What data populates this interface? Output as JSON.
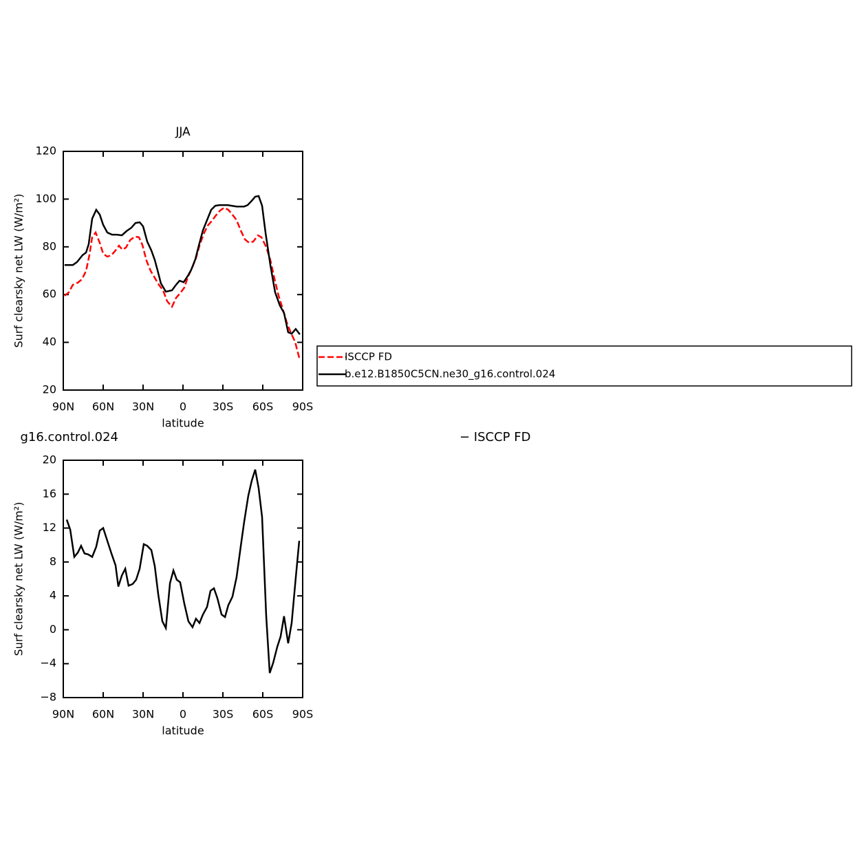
{
  "chart_data": [
    {
      "type": "line",
      "title": "JJA",
      "xlabel": "latitude",
      "ylabel": "Surf clearsky net LW (W/m²)",
      "xlim": [
        90,
        -90
      ],
      "ylim": [
        20,
        120
      ],
      "xticks": [
        {
          "value": 90,
          "label": "90N"
        },
        {
          "value": 60,
          "label": "60N"
        },
        {
          "value": 30,
          "label": "30N"
        },
        0,
        {
          "value": -30,
          "label": "30S"
        },
        {
          "value": -60,
          "label": "60S"
        },
        {
          "value": -90,
          "label": "90S"
        }
      ],
      "yticks": [
        20,
        40,
        60,
        80,
        100,
        120
      ],
      "legend": "right",
      "series": [
        {
          "name": "ISCCP FD",
          "color": "#ff0000",
          "dash": true,
          "x": [
            89.0,
            85.9,
            82.8,
            79.1,
            76.0,
            72.9,
            70.3,
            68.3,
            65.7,
            62.6,
            60.0,
            56.9,
            53.8,
            50.7,
            48.1,
            45.5,
            42.9,
            39.8,
            36.2,
            33.1,
            30.5,
            27.4,
            24.3,
            21.2,
            18.1,
            15.0,
            11.9,
            8.3,
            5.2,
            2.1,
            -1.0,
            -3.6,
            -6.7,
            -9.8,
            -12.4,
            -15.5,
            -18.6,
            -21.7,
            -24.8,
            -27.9,
            -31.0,
            -34.1,
            -37.2,
            -40.3,
            -43.4,
            -46.6,
            -49.7,
            -52.8,
            -56.4,
            -59.0,
            -62.6,
            -65.7,
            -68.8,
            -71.9,
            -75.0,
            -78.1,
            -81.2,
            -84.3,
            -87.4
          ],
          "values": [
            59.5,
            60.9,
            64.1,
            65.0,
            66.4,
            69.9,
            76.8,
            84.0,
            86.0,
            81.7,
            77.1,
            75.9,
            76.5,
            78.5,
            80.5,
            78.8,
            79.7,
            82.8,
            84.3,
            84.0,
            80.8,
            74.2,
            69.9,
            67.0,
            64.1,
            61.8,
            57.2,
            54.9,
            58.6,
            60.6,
            62.9,
            67.3,
            71.0,
            75.3,
            80.5,
            85.4,
            88.9,
            90.9,
            93.2,
            95.2,
            96.4,
            95.5,
            93.5,
            91.2,
            86.9,
            83.1,
            81.7,
            82.2,
            84.8,
            84.0,
            79.9,
            74.5,
            66.7,
            59.5,
            54.0,
            48.2,
            43.9,
            40.2,
            33.5
          ]
        },
        {
          "name": "b.e12.B1850C5CN.ne30_g16.control.024",
          "color": "#000000",
          "dash": false,
          "x": [
            89.0,
            82.8,
            79.7,
            75.5,
            72.9,
            70.9,
            68.3,
            65.2,
            62.6,
            60.0,
            56.9,
            53.3,
            49.7,
            46.0,
            42.4,
            38.8,
            35.7,
            32.6,
            30.0,
            26.9,
            23.8,
            21.2,
            19.1,
            16.6,
            12.9,
            8.3,
            5.2,
            2.6,
            -0.5,
            -3.6,
            -6.2,
            -9.3,
            -11.9,
            -15.0,
            -18.1,
            -21.2,
            -24.3,
            -27.4,
            -33.6,
            -36.7,
            -40.3,
            -46.0,
            -48.6,
            -51.7,
            -54.3,
            -56.9,
            -59.5,
            -62.1,
            -65.7,
            -69.3,
            -72.9,
            -76.0,
            -79.1,
            -81.7,
            -84.8,
            -87.9
          ],
          "values": [
            72.4,
            72.4,
            73.6,
            76.5,
            77.6,
            81.1,
            91.8,
            95.5,
            93.5,
            89.2,
            86.0,
            85.1,
            85.1,
            84.8,
            86.6,
            88.0,
            90.0,
            90.3,
            88.6,
            82.2,
            78.5,
            74.5,
            70.1,
            64.7,
            61.2,
            61.8,
            64.1,
            65.8,
            65.2,
            67.8,
            70.4,
            74.8,
            80.5,
            86.9,
            91.2,
            95.5,
            97.2,
            97.5,
            97.5,
            97.2,
            96.9,
            96.9,
            97.5,
            99.3,
            101.0,
            101.3,
            97.2,
            85.7,
            72.4,
            60.9,
            55.4,
            52.3,
            44.2,
            43.6,
            45.6,
            43.3
          ]
        }
      ]
    },
    {
      "type": "line",
      "title_left": "g16.control.024",
      "title_right": "− ISCCP FD",
      "xlabel": "latitude",
      "ylabel": "Surf clearsky net LW (W/m²)",
      "xlim": [
        90,
        -90
      ],
      "ylim": [
        -8,
        20
      ],
      "xticks": [
        {
          "value": 90,
          "label": "90N"
        },
        {
          "value": 60,
          "label": "60N"
        },
        {
          "value": 30,
          "label": "30N"
        },
        0,
        {
          "value": -30,
          "label": "30S"
        },
        {
          "value": -60,
          "label": "60S"
        },
        {
          "value": -90,
          "label": "90S"
        }
      ],
      "yticks": [
        {
          "value": -8,
          "label": "−8"
        },
        {
          "value": -4,
          "label": "−4"
        },
        0,
        4,
        8,
        12,
        16,
        20
      ],
      "series": [
        {
          "color": "#000000",
          "dash": false,
          "x": [
            87.4,
            84.8,
            81.7,
            79.1,
            76.6,
            74.0,
            71.4,
            68.3,
            65.2,
            62.6,
            60.0,
            56.9,
            53.8,
            50.7,
            48.6,
            46.0,
            43.4,
            40.9,
            37.8,
            35.2,
            32.6,
            29.5,
            26.9,
            23.8,
            21.2,
            18.6,
            15.5,
            12.9,
            9.8,
            7.2,
            4.7,
            2.1,
            -1.0,
            -4.1,
            -7.2,
            -9.8,
            -12.4,
            -15.0,
            -18.1,
            -20.7,
            -23.3,
            -25.9,
            -29.0,
            -31.6,
            -34.1,
            -37.2,
            -40.3,
            -43.4,
            -46.0,
            -49.1,
            -51.7,
            -54.3,
            -56.9,
            -59.5,
            -62.6,
            -65.2,
            -67.8,
            -70.9,
            -73.4,
            -76.0,
            -79.1,
            -81.7,
            -84.8,
            -87.4
          ],
          "values": [
            13.0,
            11.8,
            8.6,
            9.1,
            9.9,
            9.0,
            8.9,
            8.6,
            9.8,
            11.7,
            12.0,
            10.5,
            9.0,
            7.6,
            5.1,
            6.4,
            7.2,
            5.2,
            5.4,
            5.9,
            7.2,
            10.1,
            9.9,
            9.4,
            7.5,
            4.2,
            1.0,
            0.2,
            5.5,
            7.0,
            5.9,
            5.6,
            3.1,
            1.0,
            0.3,
            1.3,
            0.8,
            1.8,
            2.7,
            4.6,
            4.9,
            3.7,
            1.8,
            1.5,
            2.9,
            3.9,
            6.2,
            9.8,
            12.7,
            15.8,
            17.6,
            18.9,
            16.7,
            13.3,
            1.6,
            -5.1,
            -3.9,
            -2.0,
            -0.8,
            1.6,
            -1.6,
            0.8,
            6.1,
            10.5
          ]
        }
      ]
    }
  ]
}
